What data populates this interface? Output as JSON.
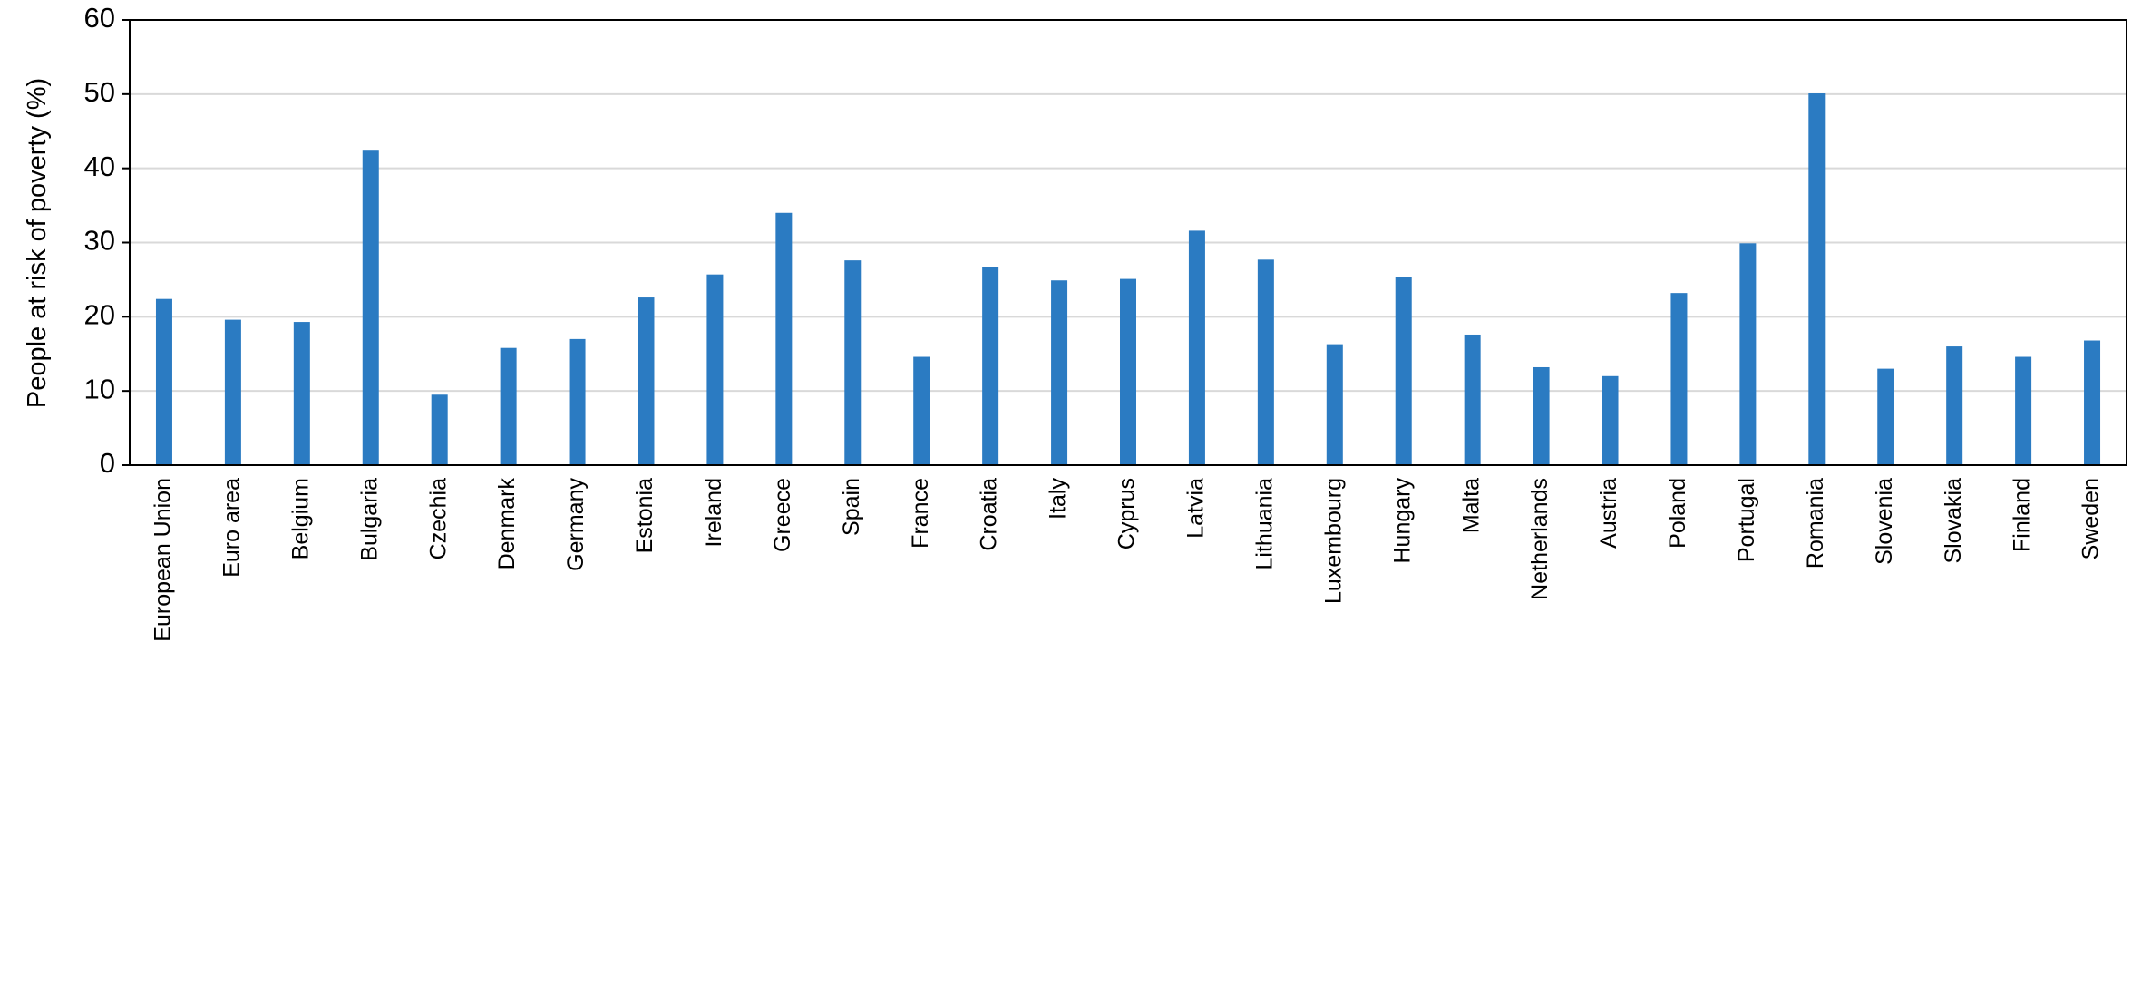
{
  "chart_data": {
    "type": "bar",
    "y_label": "People at risk of poverty (%)",
    "categories": [
      "European Union",
      "Euro area",
      "Belgium",
      "Bulgaria",
      "Czechia",
      "Denmark",
      "Germany",
      "Estonia",
      "Ireland",
      "Greece",
      "Spain",
      "France",
      "Croatia",
      "Italy",
      "Cyprus",
      "Latvia",
      "Lithuania",
      "Luxembourg",
      "Hungary",
      "Malta",
      "Netherlands",
      "Austria",
      "Poland",
      "Portugal",
      "Romania",
      "Slovenia",
      "Slovakia",
      "Finland",
      "Sweden"
    ],
    "values": [
      22.4,
      19.6,
      19.3,
      42.5,
      9.5,
      15.8,
      17.0,
      22.6,
      25.7,
      34.0,
      27.6,
      14.6,
      26.7,
      24.9,
      25.1,
      31.6,
      27.7,
      16.3,
      25.3,
      17.6,
      13.2,
      12.0,
      23.2,
      29.9,
      50.1,
      13.0,
      16.0,
      14.6,
      16.8
    ],
    "color": "#2b7bc2",
    "ylim": [
      0,
      60
    ],
    "yticks": [
      0,
      10,
      20,
      30,
      40,
      50,
      60
    ],
    "grid": true
  }
}
